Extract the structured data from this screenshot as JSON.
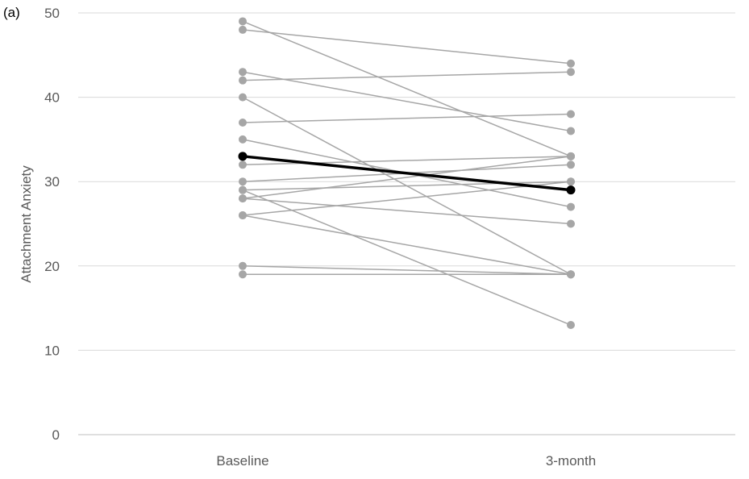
{
  "panel_label": "(a)",
  "chart_data": {
    "type": "line",
    "title": "",
    "ylabel": "Attachment Anxiety",
    "xlabel": "",
    "categories": [
      "Baseline",
      "3-month"
    ],
    "ylim": [
      0,
      50
    ],
    "yticks": [
      0,
      10,
      20,
      30,
      40,
      50
    ],
    "grid": true,
    "legend": "none",
    "individual_color": "#a6a6a6",
    "mean_color": "#000000",
    "individuals": [
      [
        49,
        33
      ],
      [
        48,
        44
      ],
      [
        43,
        36
      ],
      [
        42,
        43
      ],
      [
        40,
        19
      ],
      [
        37,
        38
      ],
      [
        35,
        27
      ],
      [
        32,
        33
      ],
      [
        30,
        32
      ],
      [
        29,
        30
      ],
      [
        29,
        13
      ],
      [
        28,
        33
      ],
      [
        28,
        25
      ],
      [
        26,
        30
      ],
      [
        26,
        19
      ],
      [
        20,
        19
      ],
      [
        19,
        19
      ]
    ],
    "mean": [
      33,
      29
    ]
  }
}
